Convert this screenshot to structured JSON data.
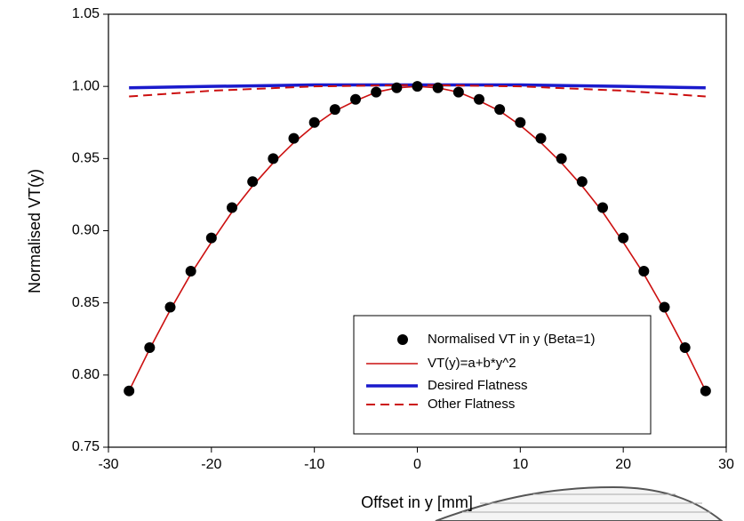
{
  "chart_data": {
    "type": "line",
    "xlabel": "Offset in y [mm]",
    "ylabel": "Normalised VT(y)",
    "xlim": [
      -30,
      30
    ],
    "xticks": [
      -30,
      -20,
      -10,
      0,
      10,
      20,
      30
    ],
    "ylim": [
      0.75,
      1.05
    ],
    "yticks": [
      0.75,
      {
        "value": 0.8,
        "label": "0.80"
      },
      0.85,
      {
        "value": 0.9,
        "label": "0.90"
      },
      0.95,
      {
        "value": 1.0,
        "label": "1.00"
      },
      1.05
    ],
    "legend": "lower right",
    "series": [
      {
        "name": "Normalised VT in y (Beta=1)",
        "mark": "scatter",
        "color": "#000000",
        "x": [
          -28,
          -26,
          -24,
          -22,
          -20,
          -18,
          -16,
          -14,
          -12,
          -10,
          -8,
          -6,
          -4,
          -2,
          0,
          2,
          4,
          6,
          8,
          10,
          12,
          14,
          16,
          18,
          20,
          22,
          24,
          26,
          28
        ],
        "values": [
          0.789,
          0.819,
          0.847,
          0.872,
          0.895,
          0.916,
          0.934,
          0.95,
          0.964,
          0.975,
          0.984,
          0.991,
          0.996,
          0.999,
          1.0,
          0.999,
          0.996,
          0.991,
          0.984,
          0.975,
          0.964,
          0.95,
          0.934,
          0.916,
          0.895,
          0.872,
          0.847,
          0.819,
          0.789
        ]
      },
      {
        "name": "VT(y)=a+b*y^2",
        "mark": "line",
        "color": "#cc1010",
        "x": [
          -28,
          -26,
          -24,
          -22,
          -20,
          -18,
          -16,
          -14,
          -12,
          -10,
          -8,
          -6,
          -4,
          -2,
          0,
          2,
          4,
          6,
          8,
          10,
          12,
          14,
          16,
          18,
          20,
          22,
          24,
          26,
          28
        ],
        "values": [
          0.789,
          0.818,
          0.845,
          0.87,
          0.892,
          0.913,
          0.931,
          0.947,
          0.961,
          0.973,
          0.983,
          0.99,
          0.996,
          0.999,
          1.0,
          0.999,
          0.996,
          0.99,
          0.983,
          0.973,
          0.961,
          0.947,
          0.931,
          0.913,
          0.892,
          0.87,
          0.845,
          0.818,
          0.789
        ]
      },
      {
        "name": "Desired Flatness",
        "mark": "thick",
        "color": "#1a1acc",
        "x": [
          -28,
          -20,
          -10,
          0,
          10,
          20,
          28
        ],
        "values": [
          0.999,
          1.0,
          1.001,
          1.001,
          1.001,
          1.0,
          0.999
        ]
      },
      {
        "name": "Other Flatness",
        "mark": "dashed",
        "color": "#cc1010",
        "x": [
          -28,
          -20,
          -10,
          0,
          10,
          20,
          28
        ],
        "values": [
          0.993,
          0.997,
          1.0,
          1.001,
          1.0,
          0.997,
          0.993
        ]
      }
    ]
  }
}
